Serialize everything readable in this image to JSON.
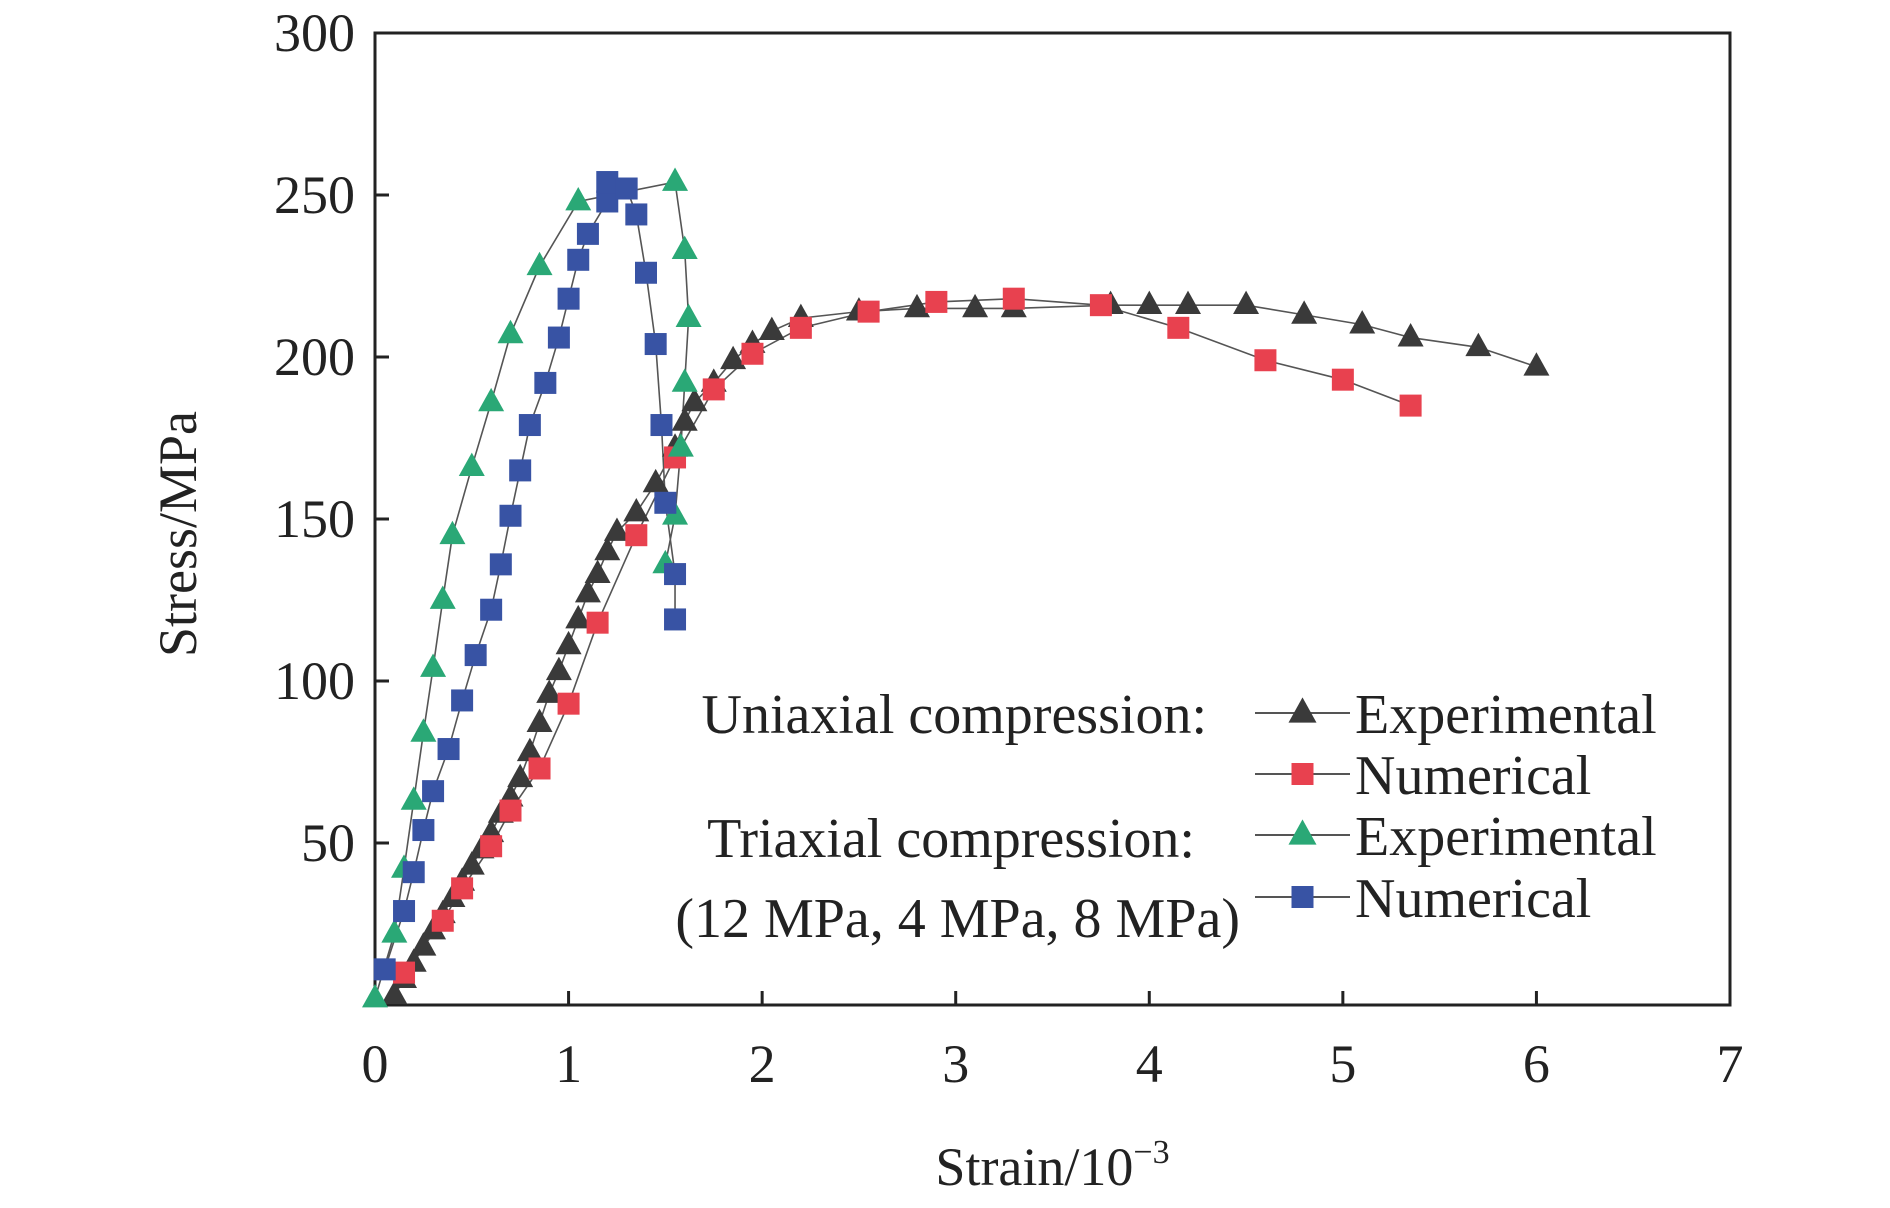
{
  "chart_data": {
    "type": "line",
    "title": "",
    "xlabel": "Strain/10",
    "xlabel_exponent": "−3",
    "ylabel": "Stress/MPa",
    "xlim": [
      0,
      7
    ],
    "ylim": [
      0,
      300
    ],
    "x_ticks": [
      "0",
      "1",
      "2",
      "3",
      "4",
      "5",
      "6",
      "7"
    ],
    "y_ticks": [
      "50",
      "100",
      "150",
      "200",
      "250",
      "300"
    ],
    "grid": false,
    "legend_position": "bottom-right",
    "legend_groups": [
      {
        "heading": "Uniaxial compression:",
        "entries": [
          "Experimental",
          "Numerical"
        ]
      },
      {
        "heading": "Triaxial compression:",
        "subheading": "(12 MPa, 4 MPa, 8 MPa)",
        "entries": [
          "Experimental",
          "Numerical"
        ]
      }
    ],
    "series": [
      {
        "name": "Experimental",
        "group": "Uniaxial compression:",
        "marker": "triangle",
        "color": "#3a3a3a",
        "points": [
          [
            0.1,
            3
          ],
          [
            0.15,
            8
          ],
          [
            0.2,
            13
          ],
          [
            0.25,
            18
          ],
          [
            0.3,
            23
          ],
          [
            0.35,
            28
          ],
          [
            0.4,
            33
          ],
          [
            0.45,
            38
          ],
          [
            0.5,
            43
          ],
          [
            0.55,
            48
          ],
          [
            0.6,
            53
          ],
          [
            0.65,
            59
          ],
          [
            0.7,
            64
          ],
          [
            0.75,
            70
          ],
          [
            0.8,
            78
          ],
          [
            0.85,
            87
          ],
          [
            0.9,
            96
          ],
          [
            0.95,
            103
          ],
          [
            1.0,
            111
          ],
          [
            1.05,
            119
          ],
          [
            1.1,
            127
          ],
          [
            1.15,
            133
          ],
          [
            1.2,
            140
          ],
          [
            1.25,
            146
          ],
          [
            1.35,
            152
          ],
          [
            1.45,
            161
          ],
          [
            1.55,
            172
          ],
          [
            1.6,
            180
          ],
          [
            1.65,
            186
          ],
          [
            1.75,
            192
          ],
          [
            1.85,
            199
          ],
          [
            1.95,
            204
          ],
          [
            2.05,
            208
          ],
          [
            2.2,
            212
          ],
          [
            2.5,
            214
          ],
          [
            2.8,
            215
          ],
          [
            3.1,
            215
          ],
          [
            3.3,
            215
          ],
          [
            3.8,
            216
          ],
          [
            4.0,
            216
          ],
          [
            4.2,
            216
          ],
          [
            4.5,
            216
          ],
          [
            4.8,
            213
          ],
          [
            5.1,
            210
          ],
          [
            5.35,
            206
          ],
          [
            5.7,
            203
          ],
          [
            6.0,
            197
          ]
        ]
      },
      {
        "name": "Numerical",
        "group": "Uniaxial compression:",
        "marker": "square",
        "color": "#e8414f",
        "points": [
          [
            0.15,
            10
          ],
          [
            0.35,
            26
          ],
          [
            0.45,
            36
          ],
          [
            0.6,
            49
          ],
          [
            0.7,
            60
          ],
          [
            0.85,
            73
          ],
          [
            1.0,
            93
          ],
          [
            1.15,
            118
          ],
          [
            1.35,
            145
          ],
          [
            1.55,
            169
          ],
          [
            1.75,
            190
          ],
          [
            1.95,
            201
          ],
          [
            2.2,
            209
          ],
          [
            2.55,
            214
          ],
          [
            2.9,
            217
          ],
          [
            3.3,
            218
          ],
          [
            3.75,
            216
          ],
          [
            4.15,
            209
          ],
          [
            4.6,
            199
          ],
          [
            5.0,
            193
          ],
          [
            5.35,
            185
          ]
        ]
      },
      {
        "name": "Experimental",
        "group": "Triaxial compression:",
        "marker": "triangle",
        "color": "#2aa876",
        "points": [
          [
            0.0,
            2
          ],
          [
            0.1,
            22
          ],
          [
            0.15,
            42
          ],
          [
            0.2,
            63
          ],
          [
            0.25,
            84
          ],
          [
            0.3,
            104
          ],
          [
            0.35,
            125
          ],
          [
            0.4,
            145
          ],
          [
            0.5,
            166
          ],
          [
            0.6,
            186
          ],
          [
            0.7,
            207
          ],
          [
            0.85,
            228
          ],
          [
            1.05,
            248
          ],
          [
            1.55,
            254
          ],
          [
            1.6,
            233
          ],
          [
            1.62,
            212
          ],
          [
            1.6,
            192
          ],
          [
            1.58,
            172
          ],
          [
            1.55,
            151
          ],
          [
            1.5,
            136
          ]
        ]
      },
      {
        "name": "Numerical",
        "group": "Triaxial compression:",
        "marker": "square",
        "color": "#3853a4",
        "points": [
          [
            0.05,
            11
          ],
          [
            0.15,
            29
          ],
          [
            0.2,
            41
          ],
          [
            0.25,
            54
          ],
          [
            0.3,
            66
          ],
          [
            0.38,
            79
          ],
          [
            0.45,
            94
          ],
          [
            0.52,
            108
          ],
          [
            0.6,
            122
          ],
          [
            0.65,
            136
          ],
          [
            0.7,
            151
          ],
          [
            0.75,
            165
          ],
          [
            0.8,
            179
          ],
          [
            0.88,
            192
          ],
          [
            0.95,
            206
          ],
          [
            1.0,
            218
          ],
          [
            1.05,
            230
          ],
          [
            1.1,
            238
          ],
          [
            1.2,
            248
          ],
          [
            1.2,
            254
          ],
          [
            1.3,
            252
          ],
          [
            1.35,
            244
          ],
          [
            1.4,
            226
          ],
          [
            1.45,
            204
          ],
          [
            1.48,
            179
          ],
          [
            1.5,
            155
          ],
          [
            1.55,
            133
          ],
          [
            1.55,
            119
          ]
        ]
      }
    ],
    "curve_styles": [
      {
        "series": 0,
        "color": "#555555"
      },
      {
        "series": 1,
        "color": "#555555"
      },
      {
        "series": 2,
        "color": "#555555"
      },
      {
        "series": 3,
        "color": "#555555"
      }
    ]
  }
}
